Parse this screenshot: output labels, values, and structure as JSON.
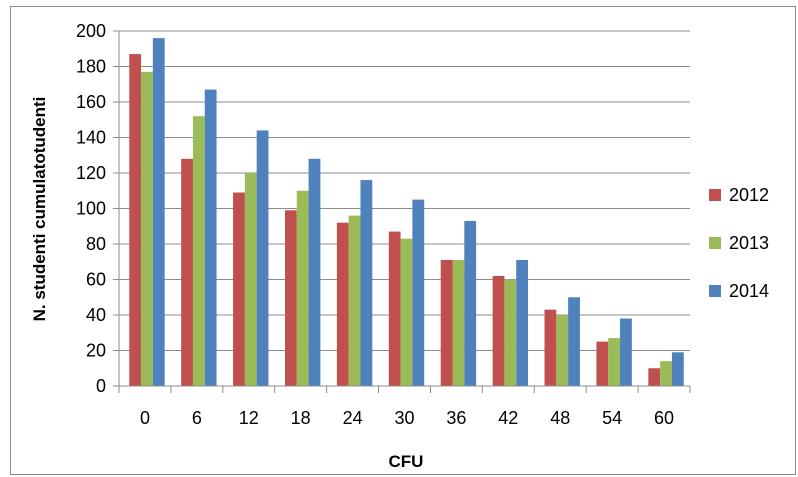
{
  "chart_data": {
    "type": "bar",
    "categories": [
      "0",
      "6",
      "12",
      "18",
      "24",
      "30",
      "36",
      "42",
      "48",
      "54",
      "60"
    ],
    "series": [
      {
        "name": "2012",
        "color": "#c0504d",
        "values": [
          187,
          128,
          109,
          99,
          92,
          87,
          71,
          62,
          43,
          25,
          10
        ]
      },
      {
        "name": "2013",
        "color": "#9bbb59",
        "values": [
          177,
          152,
          120,
          110,
          96,
          83,
          71,
          60,
          40,
          27,
          14
        ]
      },
      {
        "name": "2014",
        "color": "#4f81bd",
        "values": [
          196,
          167,
          144,
          128,
          116,
          105,
          93,
          71,
          50,
          38,
          19
        ]
      }
    ],
    "xlabel": "CFU",
    "ylabel": "N. studenti cumulatotudenti",
    "ylim": [
      0,
      200
    ],
    "yticks": [
      "0",
      "20",
      "40",
      "60",
      "80",
      "100",
      "120",
      "140",
      "160",
      "180",
      "200"
    ],
    "grid": true,
    "legend_position": "right"
  }
}
